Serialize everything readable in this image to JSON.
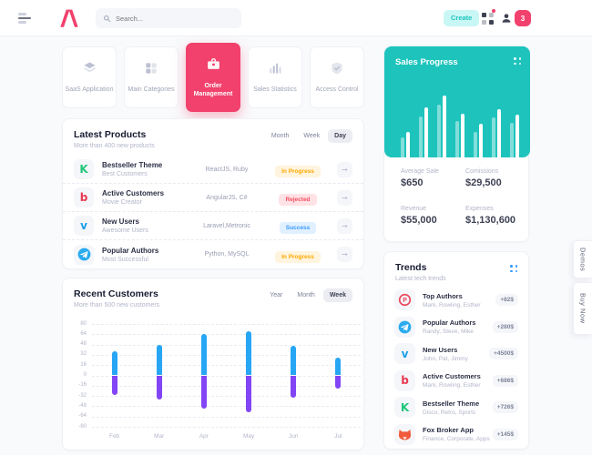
{
  "colors": {
    "accent": "#f1416c",
    "teal": "#1ec4bc",
    "bar_positive": "#27a6f5",
    "bar_negative": "#8245f5",
    "create_btn_bg": "#c9f7f5",
    "create_btn_text": "#1bc5bd"
  },
  "header": {
    "search_placeholder": "Search...",
    "create_label": "Create",
    "notification_count": "3"
  },
  "nav_cards": [
    {
      "label": "SaaS Application",
      "icon": "layers-icon",
      "active": false
    },
    {
      "label": "Main Categories",
      "icon": "grid-icon",
      "active": false
    },
    {
      "label": "Order Management",
      "icon": "briefcase-icon",
      "active": true
    },
    {
      "label": "Sales Statistics",
      "icon": "bar-chart-icon",
      "active": false
    },
    {
      "label": "Access Control",
      "icon": "shield-check-icon",
      "active": false
    }
  ],
  "latest_products": {
    "title": "Latest Products",
    "subtitle": "More than 400 new products",
    "filters": [
      "Month",
      "Week",
      "Day"
    ],
    "active_filter": "Day",
    "rows": [
      {
        "icon": "kickstarter",
        "name": "Bestseller Theme",
        "desc": "Best Customers",
        "tech": "ReactJS, Ruby",
        "status": "In Progress",
        "status_type": "warning"
      },
      {
        "icon": "bootstrap",
        "name": "Active Customers",
        "desc": "Movie Creator",
        "tech": "AngularJS, C#",
        "status": "Rejected",
        "status_type": "danger"
      },
      {
        "icon": "vimeo",
        "name": "New Users",
        "desc": "Awesome Users",
        "tech": "Laravel,Metronic",
        "status": "Success",
        "status_type": "info"
      },
      {
        "icon": "telegram",
        "name": "Popular Authors",
        "desc": "Most Successful",
        "tech": "Python, MySQL",
        "status": "In Progress",
        "status_type": "warning"
      }
    ]
  },
  "recent_customers": {
    "title": "Recent Customers",
    "subtitle": "More than 500 new customers",
    "filters": [
      "Year",
      "Month",
      "Week"
    ],
    "active_filter": "Week"
  },
  "sales_progress": {
    "title": "Sales Progress"
  },
  "stats": [
    {
      "label": "Average Sale",
      "value": "$650"
    },
    {
      "label": "Comissions",
      "value": "$29,500"
    },
    {
      "label": "Revenue",
      "value": "$55,000"
    },
    {
      "label": "Expenses",
      "value": "$1,130,600"
    }
  ],
  "trends": {
    "title": "Trends",
    "subtitle": "Latest tech trends",
    "rows": [
      {
        "icon": "producthunt",
        "name": "Top Authors",
        "desc": "Mark, Rowling, Esther",
        "badge": "+82$"
      },
      {
        "icon": "telegram",
        "name": "Popular Authors",
        "desc": "Randy, Steve, Mike",
        "badge": "+280$"
      },
      {
        "icon": "vimeo",
        "name": "New Users",
        "desc": "John, Pat, Jimmy",
        "badge": "+4500$"
      },
      {
        "icon": "bootstrap",
        "name": "Active Customers",
        "desc": "Mark, Rowling, Esther",
        "badge": "+686$"
      },
      {
        "icon": "kickstarter",
        "name": "Bestseller Theme",
        "desc": "Disco, Retro, Sports",
        "badge": "+726$"
      },
      {
        "icon": "fox",
        "name": "Fox Broker App",
        "desc": "Finance, Corporate, Apps",
        "badge": "+145$"
      }
    ]
  },
  "side_buttons": [
    "Demos",
    "Buy Now"
  ],
  "chart_data": [
    {
      "type": "bar",
      "title": "Recent Customers",
      "categories": [
        "Feb",
        "Mar",
        "Apr",
        "May",
        "Jun",
        "Jul"
      ],
      "series": [
        {
          "name": "positive",
          "color": "#27a6f5",
          "values": [
            38,
            48,
            64,
            68,
            46,
            28
          ]
        },
        {
          "name": "negative",
          "color": "#8245f5",
          "values": [
            -30,
            -38,
            -52,
            -58,
            -35,
            -20
          ]
        }
      ],
      "ylim": [
        -80,
        80
      ],
      "ytick_step": 16,
      "grid": "horizontal-dashed",
      "legend": "none"
    },
    {
      "type": "bar",
      "title": "Sales Progress",
      "series": [
        {
          "name": "secondary",
          "color": "rgba(255,255,255,0.45)",
          "values": [
            22,
            45,
            58,
            40,
            28,
            44,
            38
          ]
        },
        {
          "name": "primary",
          "color": "#ffffff",
          "values": [
            28,
            55,
            68,
            48,
            37,
            53,
            47
          ]
        }
      ],
      "unit": "px",
      "legend": "none"
    }
  ]
}
